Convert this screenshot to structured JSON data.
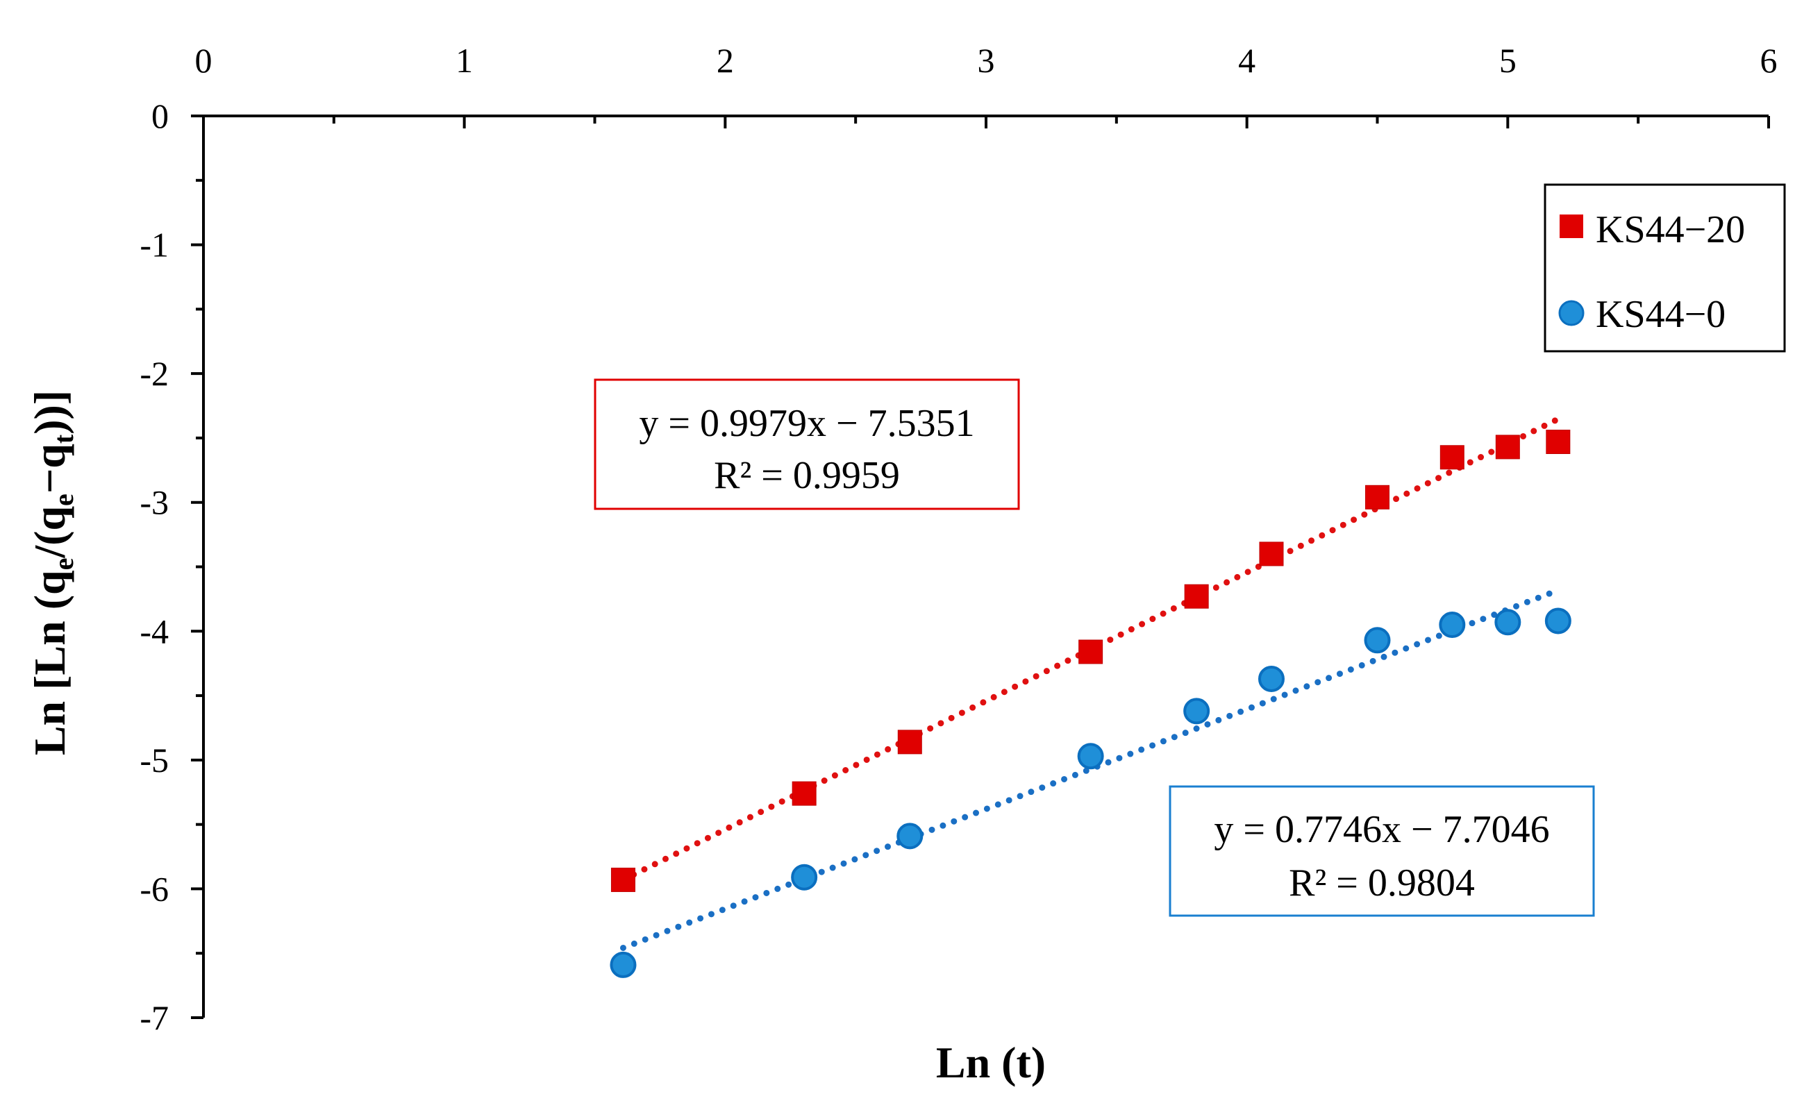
{
  "chart_data": {
    "type": "scatter",
    "title": "",
    "xlabel": "Ln (t)",
    "ylabel": "Ln [Ln (qe/(qe−qt))]",
    "ylabel_parts": {
      "a": "Ln [Ln (q",
      "b": "e",
      "c": "/(q",
      "d": "e",
      "e": "−q",
      "f": "t",
      "g": "))]"
    },
    "xlim": [
      0,
      6
    ],
    "ylim": [
      -7,
      0
    ],
    "x_axis_position": "top",
    "x_ticks": [
      "0",
      "1",
      "2",
      "3",
      "4",
      "5",
      "6"
    ],
    "y_ticks": [
      "0",
      "-1",
      "-2",
      "-3",
      "-4",
      "-5",
      "-6",
      "-7"
    ],
    "grid": false,
    "legend_position": "top-right",
    "series": [
      {
        "name": "KS44−20",
        "marker": "square",
        "color": "#e00000",
        "x": [
          1.609,
          2.303,
          2.708,
          3.401,
          3.807,
          4.094,
          4.5,
          4.787,
          5.0,
          5.193
        ],
        "y": [
          -5.93,
          -5.26,
          -4.86,
          -4.16,
          -3.73,
          -3.4,
          -2.96,
          -2.65,
          -2.57,
          -2.53
        ],
        "trendline": {
          "slope": 0.9979,
          "intercept": -7.5351,
          "x_from": 1.609,
          "x_to": 5.193
        },
        "equation": "y = 0.9979x  − 7.5351",
        "r2": "R² = 0.9959"
      },
      {
        "name": "KS44−0",
        "marker": "circle",
        "color": "#1f8fd8",
        "x": [
          1.609,
          2.303,
          2.708,
          3.401,
          3.807,
          4.094,
          4.5,
          4.787,
          5.0,
          5.193
        ],
        "y": [
          -6.59,
          -5.91,
          -5.59,
          -4.97,
          -4.62,
          -4.37,
          -4.07,
          -3.95,
          -3.93,
          -3.92
        ],
        "trendline": {
          "slope": 0.7746,
          "intercept": -7.7046,
          "x_from": 1.609,
          "x_to": 5.193
        },
        "equation": "y = 0.7746x  − 7.7046",
        "r2": "R² = 0.9804"
      }
    ]
  },
  "colors": {
    "series1": "#e00000",
    "series1_border": "#c00000",
    "series2": "#1f8fd8",
    "series2_border": "#0b6fbf",
    "trend1": "#e01010",
    "trend2": "#1a6fc4",
    "axis": "#000000"
  }
}
